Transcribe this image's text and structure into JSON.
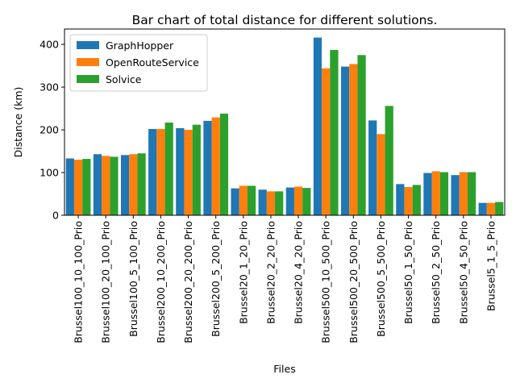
{
  "chart_data": {
    "type": "bar",
    "title": "Bar chart of total distance for different solutions.",
    "xlabel": "Files",
    "ylabel": "Distance (km)",
    "ylim": [
      0,
      436
    ],
    "yticks": [
      0,
      100,
      200,
      300,
      400
    ],
    "grid": false,
    "legend_position": "top-left",
    "categories": [
      "Brussel100_10_100_Prio",
      "Brussel100_20_100_Prio",
      "Brussel100_5_100_Prio",
      "Brussel200_10_200_Prio",
      "Brussel200_20_200_Prio",
      "Brussel200_5_200_Prio",
      "Brussel20_1_20_Prio",
      "Brussel20_2_20_Prio",
      "Brussel20_4_20_Prio",
      "Brussel500_10_500_Prio",
      "Brussel500_20_500_Prio",
      "Brussel500_5_500_Prio",
      "Brussel50_1_50_Prio",
      "Brussel50_2_50_Prio",
      "Brussel50_4_50_Prio",
      "Brussel5_1_5_Prio"
    ],
    "series": [
      {
        "name": "GraphHopper",
        "color": "#1f77b4",
        "values": [
          133,
          143,
          141,
          202,
          204,
          221,
          63,
          60,
          65,
          416,
          348,
          222,
          73,
          99,
          94,
          29
        ]
      },
      {
        "name": "OpenRouteService",
        "color": "#ff7f0e",
        "values": [
          130,
          139,
          143,
          202,
          200,
          229,
          69,
          56,
          67,
          344,
          354,
          190,
          66,
          103,
          101,
          29
        ]
      },
      {
        "name": "Solvice",
        "color": "#2ca02c",
        "values": [
          132,
          137,
          145,
          217,
          212,
          238,
          69,
          56,
          64,
          387,
          375,
          256,
          71,
          101,
          101,
          31
        ]
      }
    ]
  }
}
